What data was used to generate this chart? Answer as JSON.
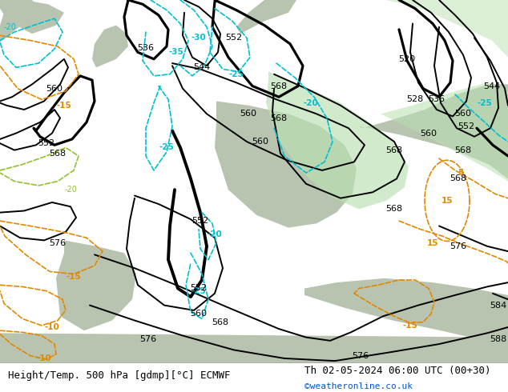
{
  "title_left": "Height/Temp. 500 hPa [gdmp][°C] ECMWF",
  "title_right": "Th 02-05-2024 06:00 UTC (00+30)",
  "credit": "©weatheronline.co.uk",
  "bg_color": "#c8e8c0",
  "land_color_gray": "#b8c8b8",
  "bottom_bar_color": "#ffffff",
  "title_fontsize": 9,
  "credit_color": "#0055cc"
}
